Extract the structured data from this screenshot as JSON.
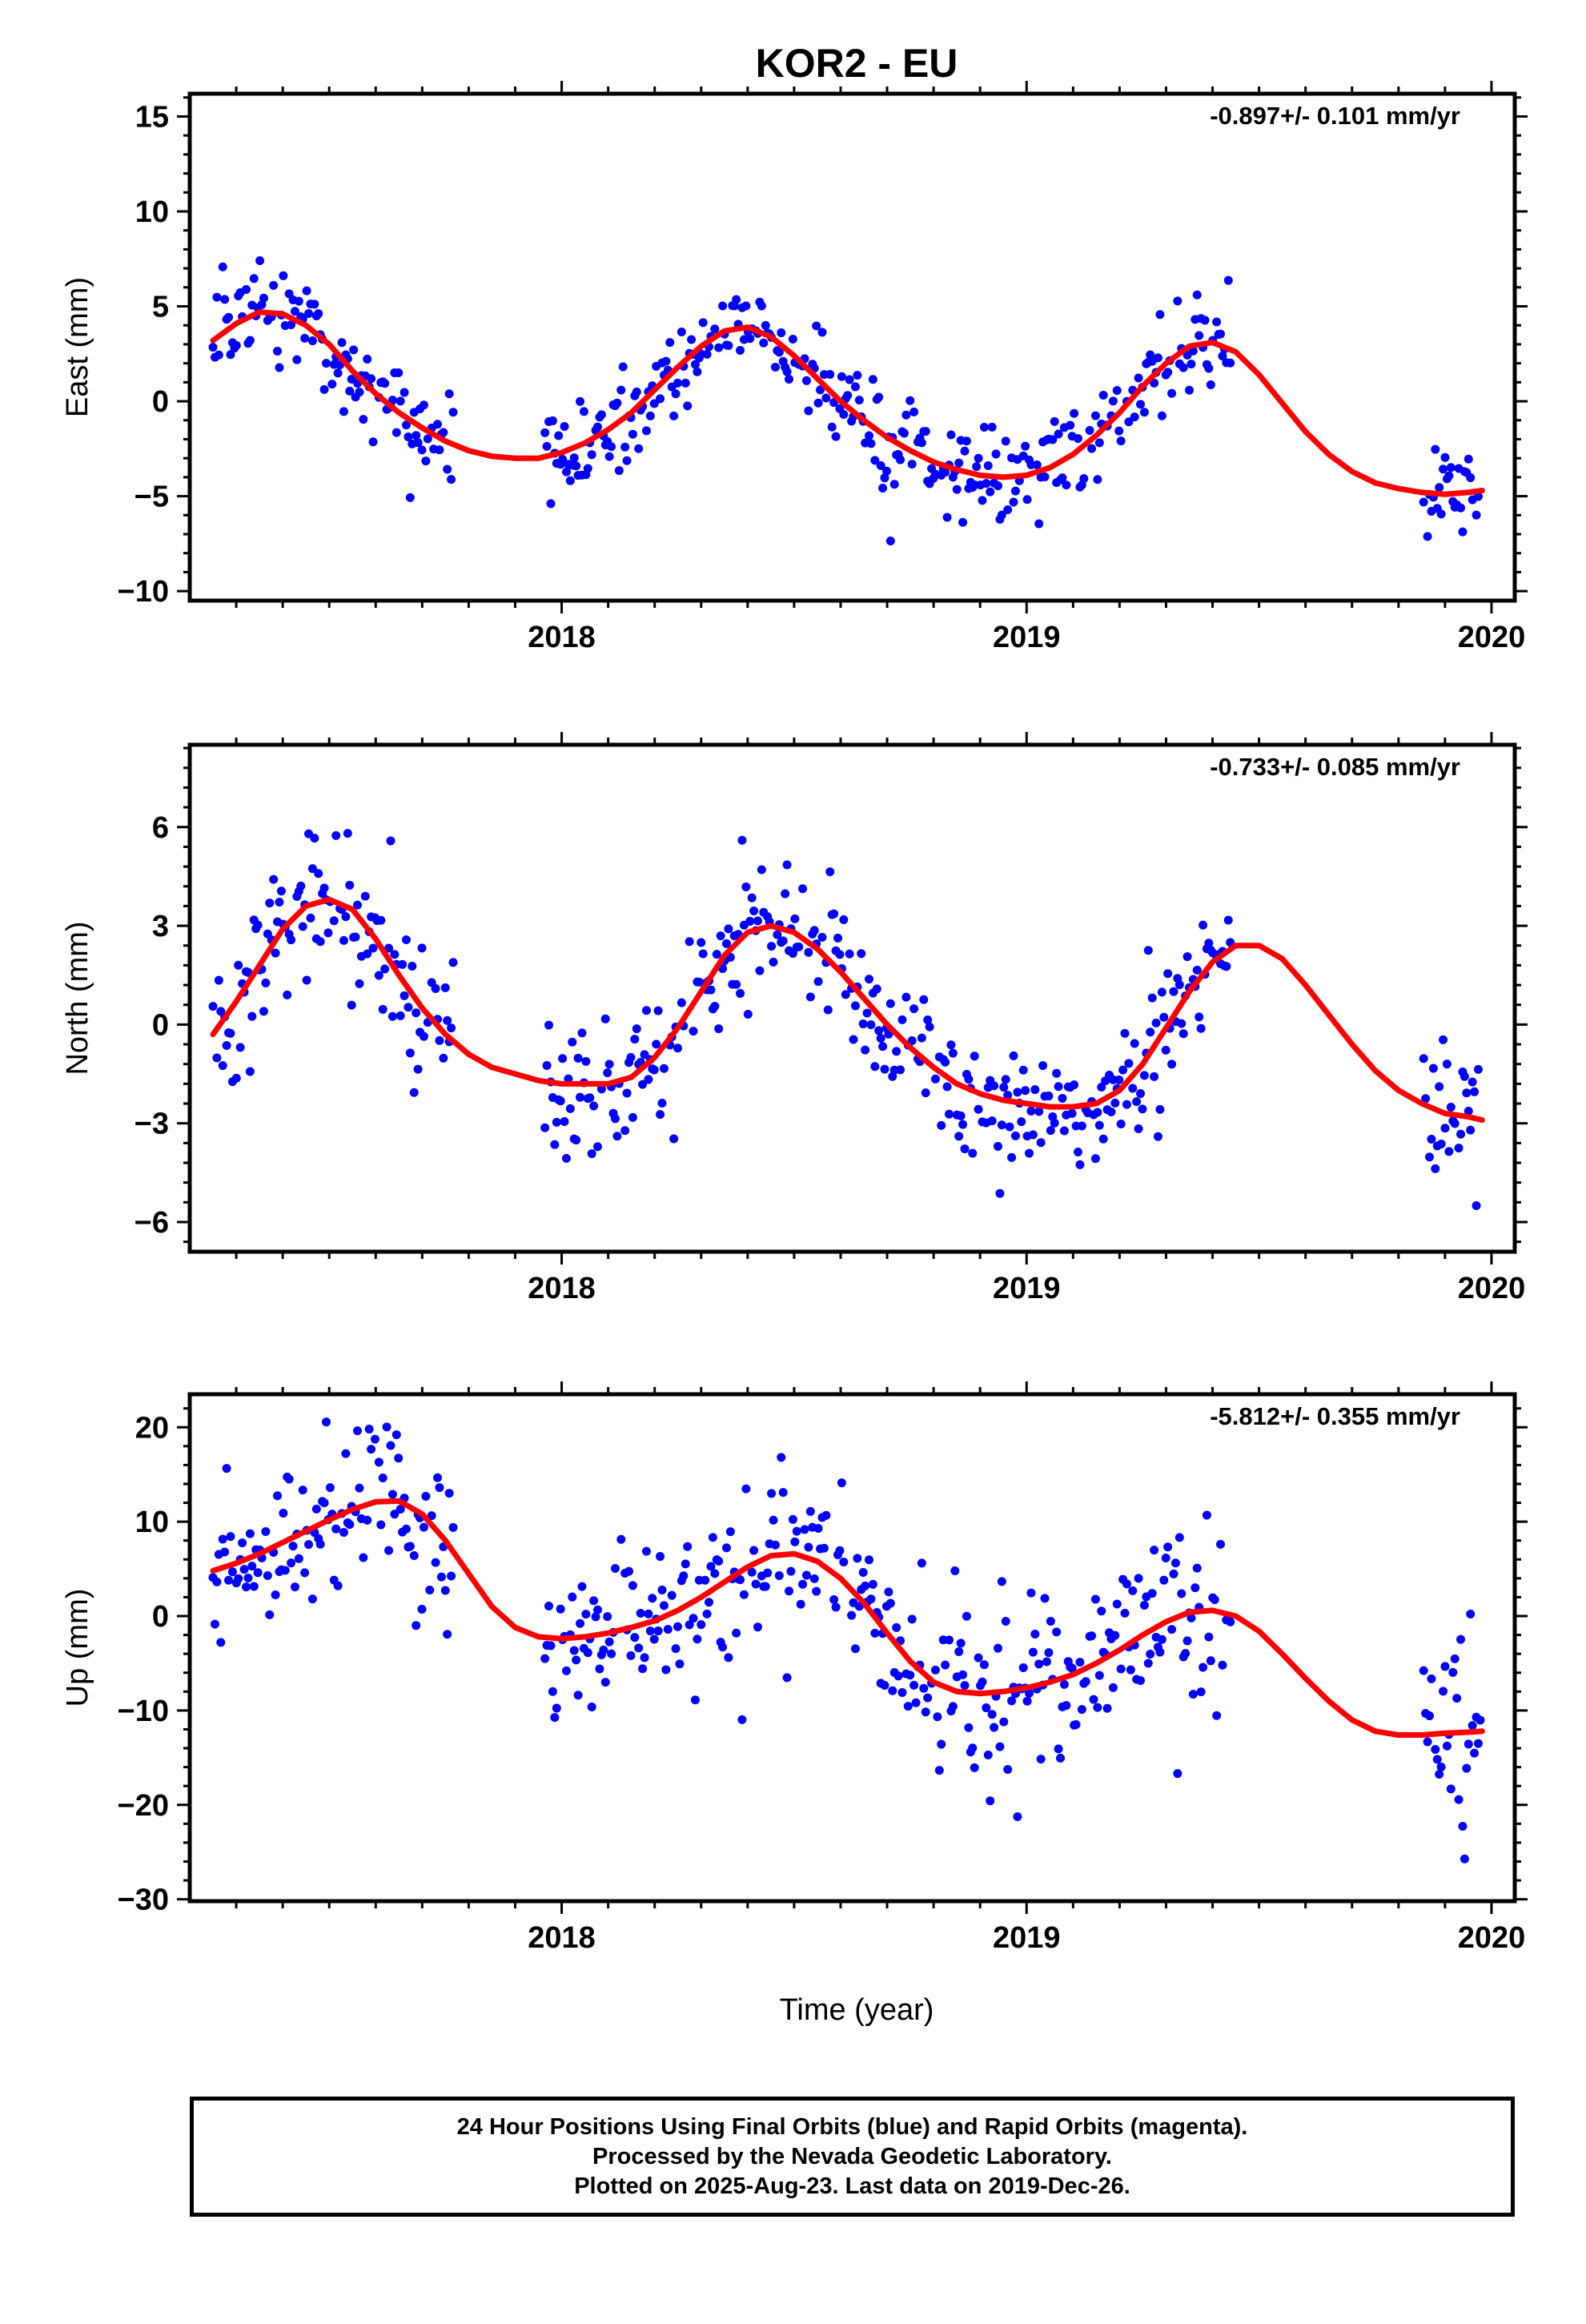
{
  "figure": {
    "title": "KOR2 - EU",
    "xlabel": "Time (year)",
    "note_lines": [
      "24 Hour Positions Using Final Orbits (blue) and Rapid Orbits (magenta).",
      "Processed by the Nevada Geodetic Laboratory.",
      "Plotted on 2025-Aug-23. Last data on 2019-Dec-26."
    ],
    "colors": {
      "points": "#0000ff",
      "fit": "#ff0000",
      "frame": "#000000"
    }
  },
  "chart_data": [
    {
      "type": "scatter",
      "title": "KOR2 - EU",
      "ylabel": "East (mm)",
      "rate_label": "-0.897+/- 0.101 mm/yr",
      "xlabel": "",
      "xlim": [
        2017.2,
        2020.05
      ],
      "ylim": [
        -10.5,
        16.2
      ],
      "xticks": [
        2018,
        2019,
        2020
      ],
      "yticks": [
        -10,
        -5,
        0,
        5,
        10,
        15
      ],
      "ytick_labels": [
        "−10",
        "−5",
        "0",
        "5",
        "10",
        "15"
      ],
      "series": [
        {
          "kind": "points",
          "gaps": [
            [
              2017.77,
              2017.96
            ],
            [
              2019.44,
              2019.85
            ]
          ],
          "noise": 1.2,
          "sampled_from_fit": true
        },
        {
          "kind": "fit",
          "x": [
            2017.25,
            2017.3,
            2017.35,
            2017.4,
            2017.45,
            2017.5,
            2017.55,
            2017.6,
            2017.65,
            2017.7,
            2017.75,
            2017.8,
            2017.85,
            2017.9,
            2017.95,
            2018.0,
            2018.05,
            2018.1,
            2018.15,
            2018.2,
            2018.25,
            2018.3,
            2018.35,
            2018.4,
            2018.45,
            2018.5,
            2018.55,
            2018.6,
            2018.65,
            2018.7,
            2018.75,
            2018.8,
            2018.85,
            2018.9,
            2018.95,
            2019.0,
            2019.05,
            2019.1,
            2019.15,
            2019.2,
            2019.25,
            2019.3,
            2019.35,
            2019.4,
            2019.45,
            2019.5,
            2019.55,
            2019.6,
            2019.65,
            2019.7,
            2019.75,
            2019.8,
            2019.85,
            2019.9,
            2019.95,
            2019.98
          ],
          "y": [
            3.2,
            4.1,
            4.7,
            4.6,
            4.0,
            3.0,
            1.6,
            0.4,
            -0.6,
            -1.4,
            -2.1,
            -2.6,
            -2.9,
            -3.0,
            -3.0,
            -2.7,
            -2.2,
            -1.5,
            -0.6,
            0.6,
            1.8,
            2.9,
            3.7,
            3.9,
            3.4,
            2.4,
            1.2,
            0.0,
            -1.0,
            -1.9,
            -2.6,
            -3.2,
            -3.6,
            -3.9,
            -4.0,
            -3.9,
            -3.5,
            -2.8,
            -1.8,
            -0.6,
            0.8,
            2.0,
            2.9,
            3.1,
            2.6,
            1.4,
            -0.1,
            -1.6,
            -2.8,
            -3.7,
            -4.3,
            -4.6,
            -4.8,
            -4.9,
            -4.8,
            -4.7
          ]
        }
      ]
    },
    {
      "type": "scatter",
      "ylabel": "North (mm)",
      "rate_label": "-0.733+/- 0.085 mm/yr",
      "xlabel": "",
      "xlim": [
        2017.2,
        2020.05
      ],
      "ylim": [
        -6.9,
        8.5
      ],
      "xticks": [
        2018,
        2019,
        2020
      ],
      "yticks": [
        -6,
        -3,
        0,
        3,
        6
      ],
      "ytick_labels": [
        "−6",
        "−3",
        "0",
        "3",
        "6"
      ],
      "series": [
        {
          "kind": "points",
          "gaps": [
            [
              2017.77,
              2017.96
            ],
            [
              2019.44,
              2019.85
            ]
          ],
          "noise": 1.0,
          "sampled_from_fit": true
        },
        {
          "kind": "fit",
          "x": [
            2017.25,
            2017.3,
            2017.35,
            2017.4,
            2017.45,
            2017.5,
            2017.55,
            2017.6,
            2017.65,
            2017.7,
            2017.75,
            2017.8,
            2017.85,
            2017.9,
            2017.95,
            2018.0,
            2018.05,
            2018.1,
            2018.15,
            2018.2,
            2018.25,
            2018.3,
            2018.35,
            2018.4,
            2018.45,
            2018.5,
            2018.55,
            2018.6,
            2018.65,
            2018.7,
            2018.75,
            2018.8,
            2018.85,
            2018.9,
            2018.95,
            2019.0,
            2019.05,
            2019.1,
            2019.15,
            2019.2,
            2019.25,
            2019.3,
            2019.35,
            2019.4,
            2019.45,
            2019.5,
            2019.55,
            2019.6,
            2019.65,
            2019.7,
            2019.75,
            2019.8,
            2019.85,
            2019.9,
            2019.95,
            2019.98
          ],
          "y": [
            -0.3,
            0.7,
            1.8,
            2.9,
            3.6,
            3.8,
            3.5,
            2.6,
            1.5,
            0.5,
            -0.3,
            -0.9,
            -1.3,
            -1.5,
            -1.7,
            -1.8,
            -1.8,
            -1.8,
            -1.6,
            -1.0,
            -0.1,
            1.0,
            2.1,
            2.8,
            3.0,
            2.8,
            2.3,
            1.6,
            0.8,
            0.0,
            -0.7,
            -1.3,
            -1.8,
            -2.1,
            -2.3,
            -2.4,
            -2.5,
            -2.5,
            -2.4,
            -2.0,
            -1.2,
            -0.1,
            1.0,
            1.9,
            2.4,
            2.4,
            2.0,
            1.2,
            0.3,
            -0.6,
            -1.4,
            -2.0,
            -2.4,
            -2.7,
            -2.8,
            -2.9
          ]
        }
      ]
    },
    {
      "type": "scatter",
      "ylabel": "Up (mm)",
      "rate_label": "-5.812+/- 0.355 mm/yr",
      "xlabel": "Time (year)",
      "xlim": [
        2017.2,
        2020.05
      ],
      "ylim": [
        -30.2,
        23.5
      ],
      "xticks": [
        2018,
        2019,
        2020
      ],
      "yticks": [
        -30,
        -20,
        -10,
        0,
        10,
        20
      ],
      "ytick_labels": [
        "−30",
        "−20",
        "−10",
        "0",
        "10",
        "20"
      ],
      "series": [
        {
          "kind": "points",
          "gaps": [
            [
              2017.77,
              2017.96
            ],
            [
              2019.44,
              2019.85
            ]
          ],
          "noise": 4.5,
          "sampled_from_fit": true
        },
        {
          "kind": "fit",
          "x": [
            2017.25,
            2017.3,
            2017.35,
            2017.4,
            2017.45,
            2017.5,
            2017.55,
            2017.6,
            2017.65,
            2017.7,
            2017.75,
            2017.8,
            2017.85,
            2017.9,
            2017.95,
            2018.0,
            2018.05,
            2018.1,
            2018.15,
            2018.2,
            2018.25,
            2018.3,
            2018.35,
            2018.4,
            2018.45,
            2018.5,
            2018.55,
            2018.6,
            2018.65,
            2018.7,
            2018.75,
            2018.8,
            2018.85,
            2018.9,
            2018.95,
            2019.0,
            2019.05,
            2019.1,
            2019.15,
            2019.2,
            2019.25,
            2019.3,
            2019.35,
            2019.4,
            2019.45,
            2019.5,
            2019.55,
            2019.6,
            2019.65,
            2019.7,
            2019.75,
            2019.8,
            2019.85,
            2019.9,
            2019.95,
            2019.98
          ],
          "y": [
            4.8,
            5.6,
            6.6,
            7.8,
            9.0,
            10.2,
            11.3,
            12.1,
            12.2,
            10.8,
            8.0,
            4.5,
            1.0,
            -1.2,
            -2.2,
            -2.4,
            -2.2,
            -1.8,
            -1.2,
            -0.5,
            0.6,
            2.0,
            3.6,
            5.2,
            6.4,
            6.6,
            5.8,
            4.0,
            1.4,
            -1.8,
            -4.8,
            -7.0,
            -8.0,
            -8.2,
            -8.0,
            -7.6,
            -7.0,
            -6.2,
            -5.0,
            -3.6,
            -2.0,
            -0.6,
            0.4,
            0.6,
            0.0,
            -1.6,
            -4.0,
            -6.6,
            -9.0,
            -11.0,
            -12.2,
            -12.6,
            -12.6,
            -12.4,
            -12.3,
            -12.2
          ]
        }
      ]
    }
  ]
}
